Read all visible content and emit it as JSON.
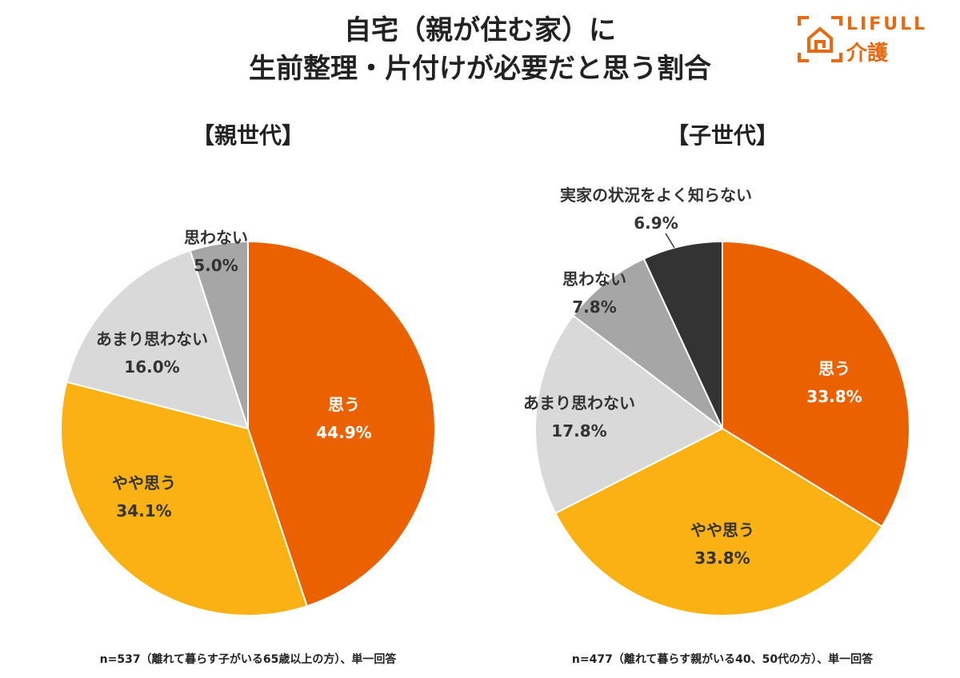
{
  "title_line1": "自宅（親が住む家）に",
  "title_line2": "生前整理・片付けが必要だと思う割合",
  "logo": {
    "text": "LIFULL",
    "sub": "介護",
    "color": "#E86A10"
  },
  "chart_data": [
    {
      "type": "pie",
      "title": "【親世代】",
      "note": "n=537（離れて暮らす子がいる65歳以上の方）、単一回答",
      "start": "top",
      "direction": "clockwise",
      "slices": [
        {
          "label": "思う",
          "value": 44.9,
          "display": "44.9%",
          "color": "#EB6100"
        },
        {
          "label": "やや思う",
          "value": 34.1,
          "display": "34.1%",
          "color": "#F9B114"
        },
        {
          "label": "あまり思わない",
          "value": 16.0,
          "display": "16.0%",
          "color": "#D9D9D9"
        },
        {
          "label": "思わない",
          "value": 5.0,
          "display": "5.0%",
          "color": "#A6A6A6"
        }
      ]
    },
    {
      "type": "pie",
      "title": "【子世代】",
      "note": "n=477（離れて暮らす親がいる40、50代の方）、単一回答",
      "start": "top",
      "direction": "clockwise",
      "slices": [
        {
          "label": "思う",
          "value": 33.8,
          "display": "33.8%",
          "color": "#EB6100"
        },
        {
          "label": "やや思う",
          "value": 33.8,
          "display": "33.8%",
          "color": "#F9B114"
        },
        {
          "label": "あまり思わない",
          "value": 17.8,
          "display": "17.8%",
          "color": "#D9D9D9"
        },
        {
          "label": "思わない",
          "value": 7.8,
          "display": "7.8%",
          "color": "#A6A6A6"
        },
        {
          "label": "実家の状況をよく知らない",
          "value": 6.9,
          "display": "6.9%",
          "color": "#333333"
        }
      ]
    }
  ]
}
